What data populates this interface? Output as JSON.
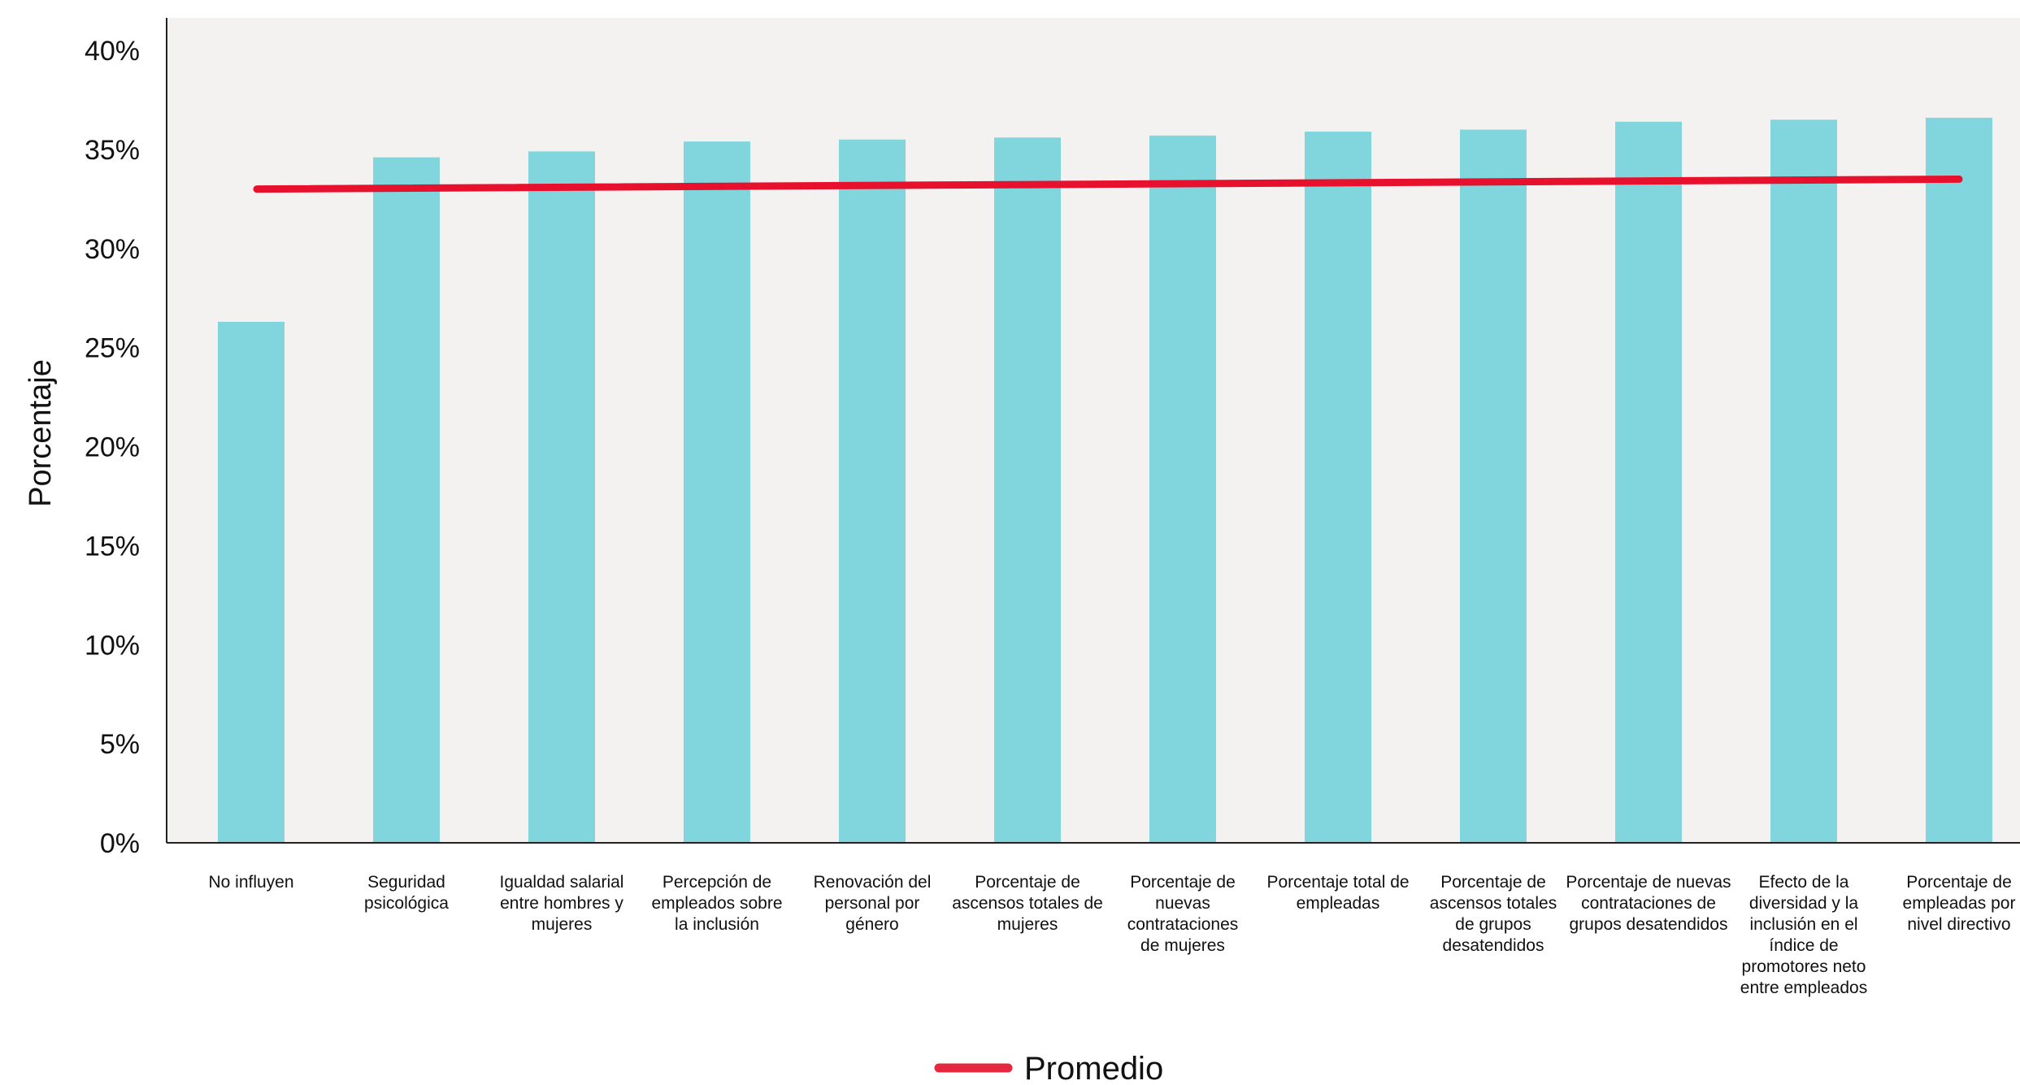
{
  "chart_data": {
    "type": "bar",
    "title": "",
    "xlabel": "",
    "ylabel": "Porcentaje",
    "ylim": [
      0,
      40
    ],
    "yticks": [
      "0%",
      "5%",
      "10%",
      "15%",
      "20%",
      "25%",
      "30%",
      "35%",
      "40%"
    ],
    "ytick_values": [
      0,
      5,
      10,
      15,
      20,
      25,
      30,
      35,
      40
    ],
    "categories": [
      "No influyen",
      "Seguridad psicológica",
      "Igualdad salarial entre hombres y mujeres",
      "Percepción de empleados sobre la inclusión",
      "Renovación del personal por género",
      "Porcentaje de ascensos totales de mujeres",
      "Porcentaje de nuevas contrataciones de mujeres",
      "Porcentaje total de empleadas",
      "Porcentaje de ascensos totales de grupos desatendidos",
      "Porcentaje de nuevas contrataciones de grupos desatendidos",
      "Efecto de la diversidad y la inclusión en el índice de promotores neto entre empleados",
      "Porcentaje de empleadas por nivel directivo"
    ],
    "category_lines": [
      [
        "No influyen"
      ],
      [
        "Seguridad",
        "psicológica"
      ],
      [
        "Igualdad salarial",
        "entre hombres y",
        "mujeres"
      ],
      [
        "Percepción de",
        "empleados sobre",
        "la inclusión"
      ],
      [
        "Renovación del",
        "personal por",
        "género"
      ],
      [
        "Porcentaje de",
        "ascensos totales de",
        "mujeres"
      ],
      [
        "Porcentaje de",
        "nuevas",
        "contrataciones",
        "de mujeres"
      ],
      [
        "Porcentaje total de",
        "empleadas"
      ],
      [
        "Porcentaje de",
        "ascensos totales",
        "de grupos",
        "desatendidos"
      ],
      [
        "Porcentaje de nuevas",
        "contrataciones de",
        "grupos desatendidos"
      ],
      [
        "Efecto de la",
        "diversidad y la",
        "inclusión en el",
        "índice de",
        "promotores neto",
        "entre empleados"
      ],
      [
        "Porcentaje de",
        "empleadas por",
        "nivel directivo"
      ]
    ],
    "values": [
      26.3,
      34.6,
      34.9,
      35.4,
      35.5,
      35.6,
      35.7,
      35.9,
      36.0,
      36.4,
      36.5,
      36.6
    ],
    "series": [
      {
        "name": "Promedio",
        "type": "line",
        "start": 33.0,
        "end": 33.5
      }
    ],
    "legend": {
      "placement": "bottom-center",
      "entries": [
        "Promedio"
      ]
    },
    "grid": false,
    "colors": {
      "bar": "#80d6dc",
      "line": "#e8112d",
      "legend_line": "#e6283f",
      "plot_bg": "#f4f2f0",
      "axis": "#222222"
    }
  }
}
